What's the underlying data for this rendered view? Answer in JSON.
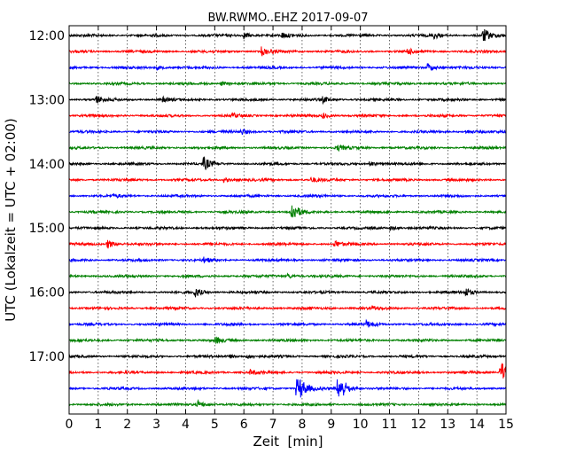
{
  "chart_data": {
    "type": "line",
    "title": "BW.RWMO..EHZ 2017-09-07",
    "xlabel": "Zeit  [min]",
    "ylabel": "UTC (Lokalzeit = UTC + 02:00)",
    "xlim": [
      0,
      15
    ],
    "x_ticks": [
      "0",
      "1",
      "2",
      "3",
      "4",
      "5",
      "6",
      "7",
      "8",
      "9",
      "10",
      "11",
      "12",
      "13",
      "14",
      "15"
    ],
    "y_tick_labels": [
      "12:00",
      "13:00",
      "14:00",
      "15:00",
      "16:00",
      "17:00"
    ],
    "grid": "vertical dotted lines at each minute",
    "trace_colors": [
      "#000000",
      "#ff0000",
      "#0000ff",
      "#008000"
    ],
    "series": [
      {
        "start": "12:00",
        "events": [
          [
            6.0,
            0.6
          ],
          [
            7.3,
            0.5
          ],
          [
            12.5,
            0.6
          ],
          [
            14.2,
            1.4
          ]
        ]
      },
      {
        "start": "12:15",
        "events": [
          [
            6.6,
            0.8
          ],
          [
            11.6,
            0.5
          ]
        ]
      },
      {
        "start": "12:30",
        "events": [
          [
            3.0,
            0.4
          ],
          [
            12.3,
            0.8
          ]
        ]
      },
      {
        "start": "12:45",
        "events": [
          [
            5.2,
            0.4
          ]
        ]
      },
      {
        "start": "13:00",
        "events": [
          [
            0.9,
            0.8
          ],
          [
            3.2,
            0.4
          ],
          [
            8.7,
            0.5
          ]
        ]
      },
      {
        "start": "13:15",
        "events": [
          [
            5.6,
            0.4
          ],
          [
            8.7,
            0.5
          ]
        ]
      },
      {
        "start": "13:30",
        "events": [
          [
            5.9,
            0.6
          ],
          [
            13.6,
            0.4
          ]
        ]
      },
      {
        "start": "13:45",
        "events": [
          [
            9.2,
            0.5
          ]
        ]
      },
      {
        "start": "14:00",
        "events": [
          [
            4.6,
            1.4
          ],
          [
            10.3,
            0.5
          ]
        ]
      },
      {
        "start": "14:15",
        "events": [
          [
            5.3,
            0.4
          ],
          [
            8.3,
            0.5
          ]
        ]
      },
      {
        "start": "14:30",
        "events": [
          [
            1.5,
            0.3
          ]
        ]
      },
      {
        "start": "14:45",
        "events": [
          [
            7.6,
            2.4
          ]
        ]
      },
      {
        "start": "15:00",
        "events": [
          [
            11.0,
            0.4
          ]
        ]
      },
      {
        "start": "15:15",
        "events": [
          [
            1.3,
            0.9
          ],
          [
            9.1,
            0.7
          ]
        ]
      },
      {
        "start": "15:30",
        "events": [
          [
            4.6,
            0.5
          ]
        ]
      },
      {
        "start": "15:45",
        "events": [
          [
            7.5,
            0.4
          ]
        ]
      },
      {
        "start": "16:00",
        "events": [
          [
            4.3,
            0.9
          ],
          [
            13.6,
            0.8
          ]
        ]
      },
      {
        "start": "16:15",
        "events": [
          [
            10.4,
            0.3
          ]
        ]
      },
      {
        "start": "16:30",
        "events": [
          [
            10.2,
            0.6
          ]
        ]
      },
      {
        "start": "16:45",
        "events": [
          [
            5.0,
            0.6
          ]
        ]
      },
      {
        "start": "17:00",
        "events": [
          [
            5.5,
            0.3
          ],
          [
            6.1,
            0.4
          ]
        ]
      },
      {
        "start": "17:15",
        "events": [
          [
            6.2,
            0.5
          ],
          [
            14.8,
            2.6
          ]
        ]
      },
      {
        "start": "17:30",
        "events": [
          [
            7.8,
            4.0
          ],
          [
            9.2,
            4.5
          ]
        ]
      },
      {
        "start": "17:45",
        "events": [
          [
            4.4,
            0.8
          ]
        ]
      }
    ]
  }
}
